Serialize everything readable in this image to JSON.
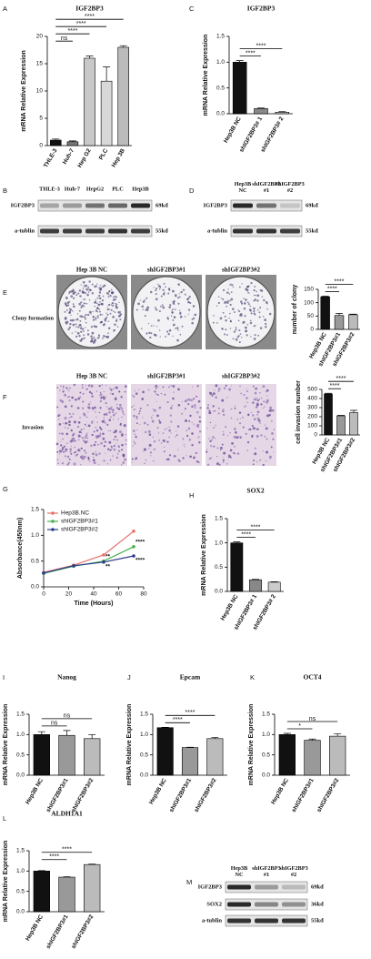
{
  "chart_data": [
    {
      "panel": "A",
      "type": "bar",
      "title": "IGF2BP3",
      "y_label": "mRNA Relative Expression",
      "categories": [
        "THLE-3",
        "Huh-7",
        "Hep G2",
        "PLC",
        "Hep 3B"
      ],
      "values": [
        1,
        0.7,
        16,
        11.8,
        18
      ],
      "errors": [
        0.2,
        0.15,
        0.4,
        2.6,
        0.3
      ],
      "colors": [
        "#111111",
        "#777777",
        "#c8c8c8",
        "#d8d8d8",
        "#bbbbbb"
      ],
      "ylim": [
        0,
        20
      ],
      "yticks": [
        0,
        5,
        10,
        15,
        20
      ],
      "annotations": [
        "ns",
        "****",
        "****",
        "****"
      ]
    },
    {
      "panel": "C",
      "type": "bar",
      "title": "IGF2BP3",
      "y_label": "mRNA Relative Expression",
      "categories": [
        "Hep3B NC",
        "shIGF2BP3# 1",
        "shIGF2BP3# 2"
      ],
      "values": [
        1.0,
        0.1,
        0.03
      ],
      "errors": [
        0.03,
        0.01,
        0.01
      ],
      "colors": [
        "#111111",
        "#888888",
        "#cccccc"
      ],
      "ylim": [
        0,
        1.5
      ],
      "yticks": [
        {
          "value": 0,
          "label": "0.0"
        },
        {
          "value": 0.5,
          "label": "0.5"
        },
        {
          "value": 1,
          "label": "1.0"
        },
        {
          "value": 1.5,
          "label": "1.5"
        }
      ],
      "annotations": [
        "****",
        "****"
      ]
    },
    {
      "type": "bar",
      "y_label": "number of clony",
      "categories": [
        "Hep3B NC",
        "shIGF2BP3#1",
        "shIGF2BP3#2"
      ],
      "values": [
        122,
        52,
        55
      ],
      "errors": [
        2,
        8,
        2
      ],
      "colors": [
        "#111111",
        "#999999",
        "#bbbbbb"
      ],
      "ylim": [
        0,
        150
      ],
      "yticks": [
        0,
        50,
        100,
        150
      ],
      "annotations": [
        "****",
        "****"
      ]
    },
    {
      "type": "bar",
      "y_label": "cell invasion number",
      "categories": [
        "Hep3B NC",
        "shIGF2BP3#1",
        "shIGF2BP3#2"
      ],
      "values": [
        450,
        210,
        245
      ],
      "errors": [
        8,
        5,
        25
      ],
      "colors": [
        "#111111",
        "#999999",
        "#bbbbbb"
      ],
      "ylim": [
        0,
        500
      ],
      "yticks": [
        0,
        100,
        200,
        300,
        400,
        500
      ],
      "annotations": [
        "****",
        "****"
      ]
    },
    {
      "panel": "G",
      "type": "line",
      "x_label": "Time (Hours)",
      "y_label": "Absorbance(450nm)",
      "x": [
        0,
        24,
        48,
        72
      ],
      "xlim": [
        0,
        80
      ],
      "xticks": [
        0,
        20,
        40,
        60,
        80
      ],
      "ylim": [
        0,
        1.5
      ],
      "yticks": [
        {
          "value": 0,
          "label": "0.0"
        },
        {
          "value": 0.5,
          "label": "0.5"
        },
        {
          "value": 1,
          "label": "1.0"
        },
        {
          "value": 1.5,
          "label": "1.5"
        }
      ],
      "series": [
        {
          "name": "Hep3B.NC",
          "color": "#e8706a",
          "values": [
            0.28,
            0.42,
            0.62,
            1.08
          ]
        },
        {
          "name": "shIGF2BP3#1",
          "color": "#4caf50",
          "values": [
            0.26,
            0.4,
            0.5,
            0.78
          ],
          "annotations": [
            "**",
            "****"
          ]
        },
        {
          "name": "shIGF2BP3#2",
          "color": "#2c3e8c",
          "values": [
            0.27,
            0.41,
            0.48,
            0.6
          ],
          "annotations": [
            "**",
            "****"
          ]
        }
      ]
    },
    {
      "panel": "H",
      "type": "bar",
      "title": "SOX2",
      "y_label": "mRNA Relative Expression",
      "categories": [
        "Hep3B NC",
        "shIGF2BP3# 1",
        "shIGF2BP3# 2"
      ],
      "values": [
        1.0,
        0.24,
        0.19
      ],
      "errors": [
        0.02,
        0.01,
        0.01
      ],
      "colors": [
        "#111111",
        "#888888",
        "#cccccc"
      ],
      "ylim": [
        0,
        1.5
      ],
      "yticks": [
        {
          "value": 0,
          "label": "0.0"
        },
        {
          "value": 0.5,
          "label": "0.5"
        },
        {
          "value": 1,
          "label": "1.0"
        },
        {
          "value": 1.5,
          "label": "1.5"
        }
      ],
      "annotations": [
        "****",
        "****"
      ]
    },
    {
      "panel": "I",
      "type": "bar",
      "title": "Nanog",
      "y_label": "mRNA Relative Expression",
      "categories": [
        "Hep3B NC",
        "shIGF2BP3#1",
        "shIGF2BP3#2"
      ],
      "values": [
        1.0,
        0.98,
        0.9
      ],
      "errors": [
        0.07,
        0.12,
        0.1
      ],
      "colors": [
        "#111111",
        "#999999",
        "#bbbbbb"
      ],
      "ylim": [
        0,
        1.5
      ],
      "yticks": [
        {
          "value": 0,
          "label": "0.0"
        },
        {
          "value": 0.5,
          "label": "0.5"
        },
        {
          "value": 1,
          "label": "1.0"
        },
        {
          "value": 1.5,
          "label": "1.5"
        }
      ],
      "annotations": [
        "ns",
        "ns"
      ]
    },
    {
      "panel": "J",
      "type": "bar",
      "title": "Epcam",
      "y_label": "mRNA Relative Expression",
      "categories": [
        "Hep3B NC",
        "shIGF2BP3#1",
        "shIGF2BP3#2"
      ],
      "values": [
        1.17,
        0.68,
        0.9
      ],
      "errors": [
        0.01,
        0.01,
        0.03
      ],
      "colors": [
        "#111111",
        "#999999",
        "#bbbbbb"
      ],
      "ylim": [
        0,
        1.5
      ],
      "yticks": [
        {
          "value": 0,
          "label": "0.0"
        },
        {
          "value": 0.5,
          "label": "0.5"
        },
        {
          "value": 1,
          "label": "1.0"
        },
        {
          "value": 1.5,
          "label": "1.5"
        }
      ],
      "annotations": [
        "****",
        "****"
      ]
    },
    {
      "panel": "K",
      "type": "bar",
      "title": "OCT4",
      "y_label": "mRNA Relative Expression",
      "categories": [
        "Hep3B NC",
        "shIGF2BP3#1",
        "shIGF2BP3#2"
      ],
      "values": [
        1.0,
        0.86,
        0.96
      ],
      "errors": [
        0.03,
        0.03,
        0.06
      ],
      "colors": [
        "#111111",
        "#999999",
        "#bbbbbb"
      ],
      "ylim": [
        0,
        1.5
      ],
      "yticks": [
        {
          "value": 0,
          "label": "0.0"
        },
        {
          "value": 0.5,
          "label": "0.5"
        },
        {
          "value": 1,
          "label": "1.0"
        },
        {
          "value": 1.5,
          "label": "1.5"
        }
      ],
      "annotations": [
        "*",
        "ns"
      ]
    },
    {
      "panel": "L",
      "type": "bar",
      "title": "ALDH1A1",
      "y_label": "mRNA Relative Expression",
      "categories": [
        "Hep3B NC",
        "shIGF2BP3#1",
        "shIGF2BP3#2"
      ],
      "values": [
        1.0,
        0.85,
        1.16
      ],
      "errors": [
        0.01,
        0.01,
        0.01
      ],
      "colors": [
        "#111111",
        "#999999",
        "#bbbbbb"
      ],
      "ylim": [
        0,
        1.5
      ],
      "yticks": [
        {
          "value": 0,
          "label": "0.0"
        },
        {
          "value": 0.5,
          "label": "0.5"
        },
        {
          "value": 1,
          "label": "1.0"
        },
        {
          "value": 1.5,
          "label": "1.5"
        }
      ],
      "annotations": [
        "****",
        "****"
      ]
    }
  ],
  "blots": [
    {
      "panel": "B",
      "lanes": [
        [
          "THLE-3"
        ],
        [
          "Huh-7"
        ],
        [
          "HepG2"
        ],
        [
          "PLC"
        ],
        [
          "Hep3B"
        ]
      ],
      "rows": [
        {
          "name": "IGF2BP3",
          "size": "69kd"
        },
        {
          "name": "a-tublin",
          "size": "55kd"
        }
      ]
    },
    {
      "panel": "D",
      "lanes": [
        [
          "Hep3B",
          "NC"
        ],
        [
          "shIGF2BP3",
          "#1"
        ],
        [
          "shIGF2BP3",
          "#2"
        ]
      ],
      "rows": [
        {
          "name": "IGF2BP3",
          "size": "69kd"
        },
        {
          "name": "a-tublin",
          "size": "55kd"
        }
      ]
    },
    {
      "panel": "M",
      "lanes": [
        [
          "Hep3B",
          "NC"
        ],
        [
          "shIGF2BP3",
          "#1"
        ],
        [
          "shIGF2BP3",
          "#2"
        ]
      ],
      "rows": [
        {
          "name": "IGF2BP3",
          "size": "69kd"
        },
        {
          "name": "SOX2",
          "size": "36kd"
        },
        {
          "name": "a-tublin",
          "size": "55kd"
        }
      ]
    }
  ],
  "images": [
    {
      "panel": "E",
      "row_label": "Clony formation",
      "columns": [
        "Hep 3B NC",
        "shIGF2BP3#1",
        "shIGF2BP3#2"
      ]
    },
    {
      "panel": "F",
      "row_label": "Invasion",
      "columns": [
        "Hep 3B NC",
        "shIGF2BP3#1",
        "shIGF2BP3#2"
      ]
    }
  ]
}
